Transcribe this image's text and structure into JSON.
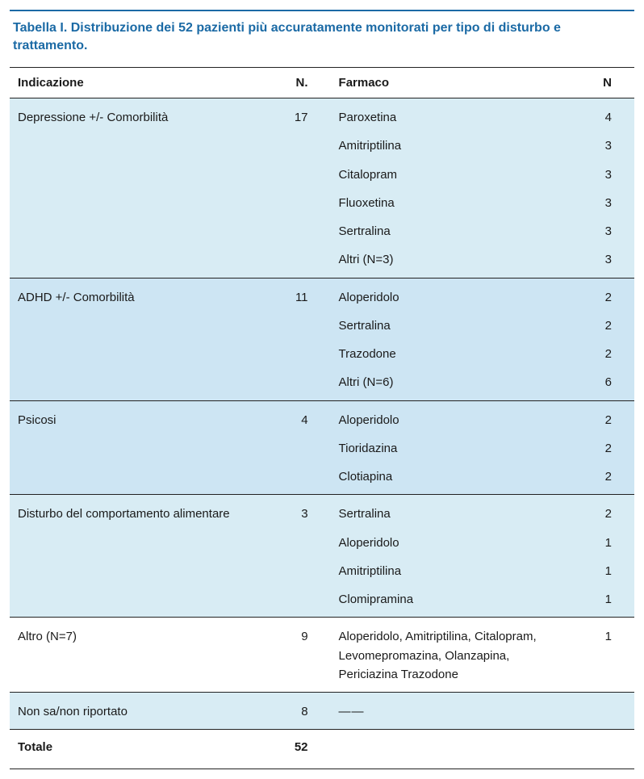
{
  "caption": {
    "label": "Tabella I.",
    "text": "Distribuzione dei 52 pazienti più accuratamente monitorati per tipo di disturbo e trattamento."
  },
  "columns": {
    "indication": "Indicazione",
    "n1": "N.",
    "drug": "Farmaco",
    "n2": "N"
  },
  "groups": [
    {
      "indication": "Depressione +/- Comorbilità",
      "n": "17",
      "shade": "a",
      "drugs": [
        {
          "name": "Paroxetina",
          "n": "4"
        },
        {
          "name": "Amitriptilina",
          "n": "3"
        },
        {
          "name": "Citalopram",
          "n": "3"
        },
        {
          "name": "Fluoxetina",
          "n": "3"
        },
        {
          "name": "Sertralina",
          "n": "3"
        },
        {
          "name": "Altri (N=3)",
          "n": "3"
        }
      ]
    },
    {
      "indication": "ADHD +/- Comorbilità",
      "n": "11",
      "shade": "b",
      "drugs": [
        {
          "name": "Aloperidolo",
          "n": "2"
        },
        {
          "name": "Sertralina",
          "n": "2"
        },
        {
          "name": "Trazodone",
          "n": "2"
        },
        {
          "name": "Altri (N=6)",
          "n": "6"
        }
      ]
    },
    {
      "indication": "Psicosi",
      "n": "4",
      "shade": "b",
      "drugs": [
        {
          "name": "Aloperidolo",
          "n": "2"
        },
        {
          "name": "Tioridazina",
          "n": "2"
        },
        {
          "name": "Clotiapina",
          "n": "2"
        }
      ]
    },
    {
      "indication": "Disturbo del comportamento alimentare",
      "n": "3",
      "shade": "a",
      "drugs": [
        {
          "name": "Sertralina",
          "n": "2"
        },
        {
          "name": "Aloperidolo",
          "n": "1"
        },
        {
          "name": "Amitriptilina",
          "n": "1"
        },
        {
          "name": "Clomipramina",
          "n": "1"
        }
      ]
    },
    {
      "indication": "Altro (N=7)",
      "n": "9",
      "shade": "none",
      "drugs": [
        {
          "name": "Aloperidolo, Amitriptilina, Citalopram, Levomepromazina, Olanzapina, Periciazina Trazodone",
          "n": "1"
        }
      ]
    },
    {
      "indication": "Non sa/non riportato",
      "n": "8",
      "shade": "a",
      "drugs": [
        {
          "name": "——",
          "n": ""
        }
      ]
    }
  ],
  "total": {
    "label": "Totale",
    "n": "52"
  },
  "colors": {
    "brand": "#1b6aa5",
    "shade_a": "#d8ecf4",
    "shade_b": "#cde5f3",
    "rule": "#222222",
    "background": "#ffffff"
  },
  "typography": {
    "body_fontsize_pt": 11,
    "caption_fontsize_pt": 12,
    "font_family": "Arial"
  }
}
